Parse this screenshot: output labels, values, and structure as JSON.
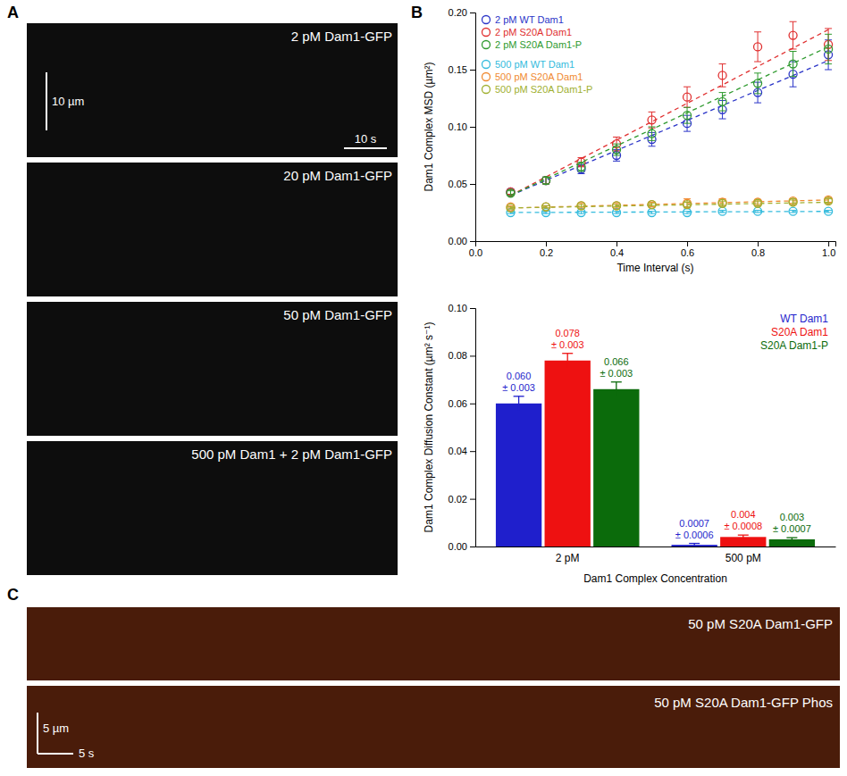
{
  "panel_letters": [
    "A",
    "B",
    "C"
  ],
  "panel_a": {
    "labels": [
      "2 pM Dam1-GFP",
      "20 pM Dam1-GFP",
      "50 pM Dam1-GFP",
      "500 pM Dam1 + 2 pM Dam1-GFP"
    ],
    "scale_bar": {
      "distance": "10 µm",
      "time": "10 s"
    }
  },
  "panel_c": {
    "labels": [
      "50 pM S20A Dam1-GFP",
      "50 pM S20A Dam1-GFP Phos"
    ],
    "scale_bar": {
      "distance": "5 µm",
      "time": "5 s"
    }
  },
  "chart_data": [
    {
      "type": "scatter",
      "marker": "circle-open",
      "line_style": "dashed",
      "x_label": "Time Interval (s)",
      "y_label": "Dam1 Complex MSD (µm²)",
      "legend": "top-left",
      "x": [
        0.1,
        0.2,
        0.3,
        0.4,
        0.5,
        0.6,
        0.7,
        0.8,
        0.9,
        1.0
      ],
      "xlim": [
        0,
        1.02
      ],
      "xticks": [
        {
          "value": 0,
          "label": "0.0"
        },
        {
          "value": 0.2,
          "label": "0.2"
        },
        {
          "value": 0.4,
          "label": "0.4"
        },
        {
          "value": 0.6,
          "label": "0.6"
        },
        {
          "value": 0.8,
          "label": "0.8"
        },
        {
          "value": 1.0,
          "label": "1.0"
        }
      ],
      "ylim": [
        0,
        0.2
      ],
      "yticks": [
        {
          "value": 0,
          "label": "0.00"
        },
        {
          "value": 0.05,
          "label": "0.05"
        },
        {
          "value": 0.1,
          "label": "0.10"
        },
        {
          "value": 0.15,
          "label": "0.15"
        },
        {
          "value": 0.2,
          "label": "0.20"
        }
      ],
      "series": [
        {
          "name": "2 pM WT Dam1",
          "color": "#2b35c8",
          "values": [
            0.043,
            0.053,
            0.063,
            0.075,
            0.089,
            0.103,
            0.115,
            0.13,
            0.146,
            0.163
          ],
          "errors": [
            0.002,
            0.003,
            0.004,
            0.005,
            0.006,
            0.007,
            0.008,
            0.009,
            0.011,
            0.013
          ],
          "fit": [
            0.04,
            0.158
          ]
        },
        {
          "name": "2 pM S20A Dam1",
          "color": "#e03030",
          "values": [
            0.043,
            0.053,
            0.069,
            0.085,
            0.106,
            0.126,
            0.145,
            0.17,
            0.18,
            0.172
          ],
          "errors": [
            0.002,
            0.003,
            0.004,
            0.006,
            0.007,
            0.009,
            0.01,
            0.013,
            0.012,
            0.014
          ],
          "fit": [
            0.04,
            0.185
          ]
        },
        {
          "name": "2 pM S20A Dam1-P",
          "color": "#2e9a2e",
          "values": [
            0.042,
            0.053,
            0.065,
            0.08,
            0.094,
            0.11,
            0.122,
            0.138,
            0.155,
            0.168
          ],
          "errors": [
            0.002,
            0.003,
            0.004,
            0.005,
            0.006,
            0.007,
            0.008,
            0.009,
            0.011,
            0.013
          ],
          "fit": [
            0.04,
            0.17
          ]
        },
        {
          "name": "500 pM WT Dam1",
          "color": "#33bbdd",
          "values": [
            0.025,
            0.025,
            0.025,
            0.025,
            0.025,
            0.025,
            0.026,
            0.026,
            0.026,
            0.026
          ],
          "errors": [
            0.001,
            0.001,
            0.001,
            0.001,
            0.001,
            0.001,
            0.001,
            0.001,
            0.001,
            0.001
          ],
          "fit": [
            0.025,
            0.026
          ]
        },
        {
          "name": "500 pM S20A Dam1",
          "color": "#f08a30",
          "values": [
            0.03,
            0.03,
            0.031,
            0.031,
            0.032,
            0.033,
            0.034,
            0.034,
            0.035,
            0.036
          ],
          "errors": [
            0.001,
            0.001,
            0.002,
            0.002,
            0.002,
            0.004,
            0.003,
            0.002,
            0.002,
            0.002
          ],
          "fit": [
            0.029,
            0.036
          ]
        },
        {
          "name": "500 pM S20A Dam1-P",
          "color": "#a0b030",
          "values": [
            0.029,
            0.03,
            0.031,
            0.031,
            0.032,
            0.032,
            0.033,
            0.033,
            0.034,
            0.035
          ],
          "errors": [
            0.001,
            0.001,
            0.001,
            0.001,
            0.001,
            0.002,
            0.002,
            0.002,
            0.002,
            0.002
          ],
          "fit": [
            0.029,
            0.034
          ]
        }
      ]
    },
    {
      "type": "bar",
      "x_label": "Dam1 Complex Concentration",
      "y_label": "Dam1 Complex Diffusion Constant (µm² s⁻¹)",
      "legend": "top-right",
      "data_labels": true,
      "categories": [
        "2 pM",
        "500 pM"
      ],
      "ylim": [
        0,
        0.1
      ],
      "yticks": [
        {
          "value": 0,
          "label": "0.00"
        },
        {
          "value": 0.02,
          "label": "0.02"
        },
        {
          "value": 0.04,
          "label": "0.04"
        },
        {
          "value": 0.06,
          "label": "0.06"
        },
        {
          "value": 0.08,
          "label": "0.08"
        },
        {
          "value": 0.1,
          "label": "0.10"
        }
      ],
      "series": [
        {
          "name": "WT Dam1",
          "color": "#1f1fcc",
          "values": [
            0.06,
            0.0007
          ],
          "value_labels": [
            "0.060",
            "0.0007"
          ],
          "errors": [
            0.003,
            0.0006
          ],
          "error_labels": [
            "± 0.003",
            "± 0.0006"
          ]
        },
        {
          "name": "S20A Dam1",
          "color": "#ee1111",
          "values": [
            0.078,
            0.004
          ],
          "value_labels": [
            "0.078",
            "0.004"
          ],
          "errors": [
            0.003,
            0.0008
          ],
          "error_labels": [
            "± 0.003",
            "± 0.0008"
          ]
        },
        {
          "name": "S20A Dam1-P",
          "color": "#0b6b0b",
          "values": [
            0.066,
            0.003
          ],
          "value_labels": [
            "0.066",
            "0.003"
          ],
          "errors": [
            0.003,
            0.0007
          ],
          "error_labels": [
            "± 0.003",
            "± 0.0007"
          ]
        }
      ]
    }
  ]
}
